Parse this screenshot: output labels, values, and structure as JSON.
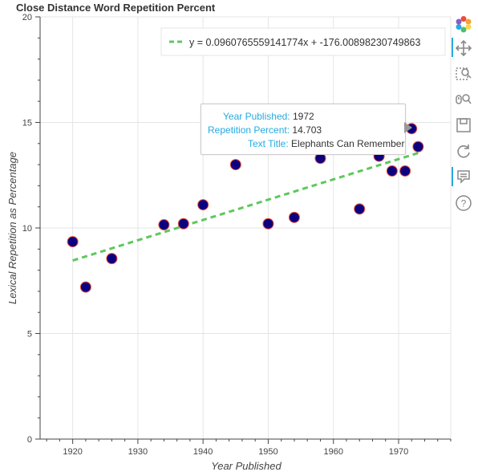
{
  "chart_data": {
    "type": "scatter",
    "title": "Close Distance Word Repetition Percent",
    "xlabel": "Year Published",
    "ylabel": "Lexical Repetition as Percentage",
    "xlim": [
      1915,
      1978
    ],
    "ylim": [
      0,
      20
    ],
    "x_ticks": [
      1920,
      1930,
      1940,
      1950,
      1960,
      1970
    ],
    "y_ticks": [
      0,
      5,
      10,
      15,
      20
    ],
    "grid": true,
    "legend_position": "top-right",
    "points": [
      {
        "x": 1920,
        "y": 9.35
      },
      {
        "x": 1922,
        "y": 7.2
      },
      {
        "x": 1926,
        "y": 8.55
      },
      {
        "x": 1934,
        "y": 10.15
      },
      {
        "x": 1937,
        "y": 10.2
      },
      {
        "x": 1940,
        "y": 11.1
      },
      {
        "x": 1945,
        "y": 13.0
      },
      {
        "x": 1950,
        "y": 10.2
      },
      {
        "x": 1954,
        "y": 10.5
      },
      {
        "x": 1958,
        "y": 13.3
      },
      {
        "x": 1964,
        "y": 10.9
      },
      {
        "x": 1967,
        "y": 13.4
      },
      {
        "x": 1969,
        "y": 12.7
      },
      {
        "x": 1971,
        "y": 12.7
      },
      {
        "x": 1972,
        "y": 14.703
      },
      {
        "x": 1973,
        "y": 13.85
      }
    ],
    "fit_line": {
      "label": "y = 0.0960765559141774x + -176.00898230749863",
      "slope": 0.0960765559141774,
      "intercept": -176.00898230749863,
      "x_range": [
        1920,
        1973
      ]
    },
    "colors": {
      "point_fill": "#0d0080",
      "point_outline": "#e8543a",
      "fit_line": "#5dc85d",
      "grid": "#e5e5e5",
      "axis": "#444444"
    }
  },
  "tooltip": {
    "rows": [
      {
        "key": "Year Published:",
        "value": "1972"
      },
      {
        "key": "Repetition Percent:",
        "value": "14.703"
      },
      {
        "key": "Text Title:",
        "value": "Elephants Can Remember"
      }
    ]
  },
  "toolbar": {
    "tools": [
      {
        "icon": "bokeh-logo-icon"
      },
      {
        "icon": "pan-icon"
      },
      {
        "icon": "box-zoom-icon"
      },
      {
        "icon": "wheel-zoom-icon"
      },
      {
        "icon": "save-icon"
      },
      {
        "icon": "reset-icon"
      },
      {
        "icon": "hover-icon"
      },
      {
        "icon": "help-icon"
      }
    ]
  }
}
